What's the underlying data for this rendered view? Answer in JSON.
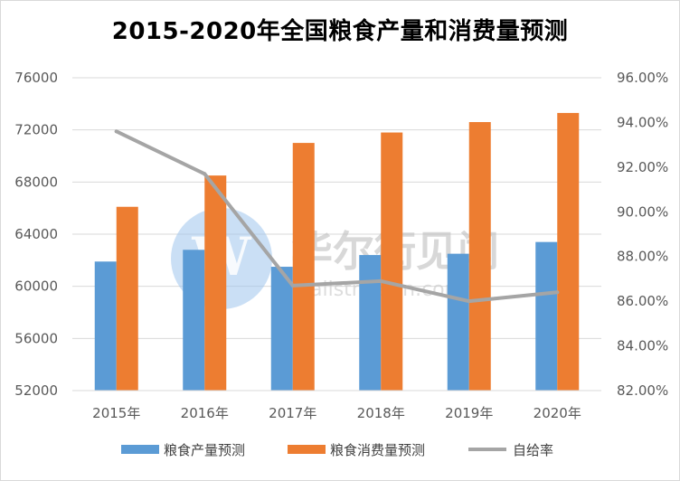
{
  "title": "2015-2020年全国粮食产量和消费量预测",
  "watermark": {
    "name": "华尔街见闻",
    "url": "wallstreetcn.com"
  },
  "colors": {
    "production": "#5b9bd5",
    "consumption": "#ed7d31",
    "ratio": "#a5a5a5"
  },
  "chart_data": {
    "type": "bar",
    "title": "2015-2020年全国粮食产量和消费量预测",
    "categories": [
      "2015年",
      "2016年",
      "2017年",
      "2018年",
      "2019年",
      "2020年"
    ],
    "series": [
      {
        "name": "粮食产量预测",
        "type": "bar",
        "axis": "left",
        "values": [
          61900,
          62800,
          61500,
          62400,
          62500,
          63400
        ]
      },
      {
        "name": "粮食消费量预测",
        "type": "bar",
        "axis": "left",
        "values": [
          66100,
          68500,
          71000,
          71800,
          72600,
          73300
        ]
      },
      {
        "name": "自给率",
        "type": "line",
        "axis": "right",
        "values": [
          93.6,
          91.7,
          86.7,
          86.9,
          86.0,
          86.4
        ]
      }
    ],
    "ylim_left": [
      52000,
      76000
    ],
    "yticks_left": [
      "52000",
      "56000",
      "60000",
      "64000",
      "68000",
      "72000",
      "76000"
    ],
    "ylim_right": [
      82,
      96
    ],
    "yticks_right": [
      "82.00%",
      "84.00%",
      "86.00%",
      "88.00%",
      "90.00%",
      "92.00%",
      "94.00%",
      "96.00%"
    ],
    "grid": true,
    "legend_position": "bottom"
  }
}
